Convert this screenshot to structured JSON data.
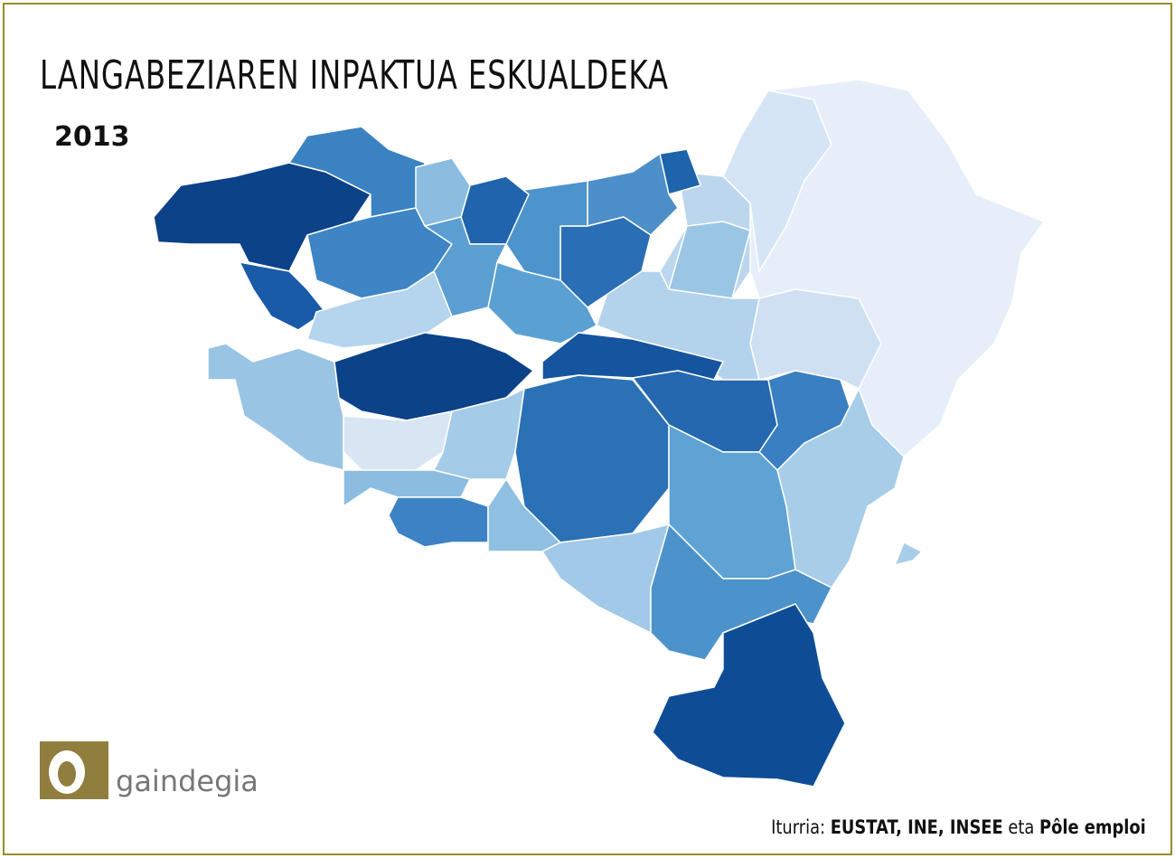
{
  "header": {
    "title": "LANGABEZIAREN INPAKTUA ESKUALDEKA",
    "year": "2013"
  },
  "logo": {
    "text": "gaindegia"
  },
  "source": {
    "label": "Iturria:",
    "agencies": "EUSTAT, INE, INSEE",
    "conjunction": "eta",
    "last": "Pôle emploi"
  }
}
